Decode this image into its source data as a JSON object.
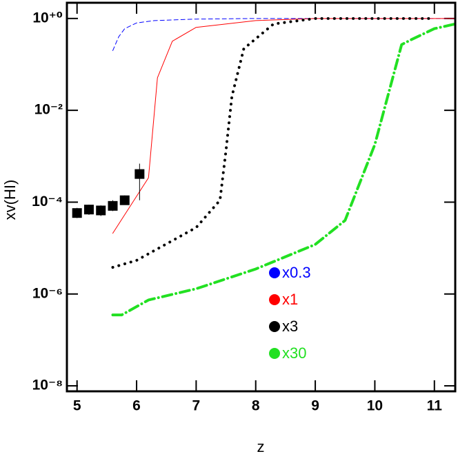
{
  "chart_data": {
    "type": "line",
    "xlabel": "z",
    "ylabel": "xv(HI)",
    "log_y": true,
    "xlim": [
      4.83,
      11.35
    ],
    "xticks": [
      5,
      6,
      7,
      8,
      9,
      10,
      11
    ],
    "ylim": [
      7.6e-09,
      2.2
    ],
    "yticks": [
      {
        "value": 1,
        "label": "10⁺⁰"
      },
      {
        "value": 0.01,
        "label": "10⁻²"
      },
      {
        "value": 0.0001,
        "label": "10⁻⁴"
      },
      {
        "value": 1e-06,
        "label": "10⁻⁶"
      },
      {
        "value": 1e-08,
        "label": "10⁻⁸"
      }
    ],
    "series": [
      {
        "name": "x0.3",
        "color": "#0000ff",
        "style": "dashed",
        "width": 1,
        "x": [
          5.6,
          5.7,
          5.8,
          6.0,
          6.3,
          7.0,
          8.0,
          11.35
        ],
        "values": [
          0.2,
          0.4,
          0.6,
          0.8,
          0.9,
          0.97,
          1,
          1
        ]
      },
      {
        "name": "x1",
        "color": "#ff0000",
        "style": "solid",
        "width": 1,
        "x": [
          5.6,
          6.2,
          6.35,
          6.6,
          7.0,
          8.0,
          9.0,
          11.35
        ],
        "values": [
          2.1e-05,
          0.00034,
          0.051,
          0.32,
          0.64,
          0.9,
          1,
          1
        ]
      },
      {
        "name": "x3",
        "color": "#000000",
        "style": "dotted",
        "width": 4,
        "x": [
          5.6,
          6.0,
          7.0,
          7.4,
          7.5,
          7.6,
          7.8,
          8.3,
          9.0,
          11.0
        ],
        "values": [
          3.8e-06,
          5.4e-06,
          2.8e-05,
          0.00011,
          0.0013,
          0.02,
          0.22,
          0.76,
          1,
          1
        ]
      },
      {
        "name": "x30",
        "color": "#22e022",
        "style": "dashdot",
        "width": 4,
        "x": [
          5.6,
          5.75,
          6.2,
          7.0,
          8.0,
          9.0,
          9.5,
          10.0,
          10.45,
          10.6,
          11.0,
          11.35
        ],
        "values": [
          3.5e-07,
          3.5e-07,
          7.4e-07,
          1.3e-06,
          3.5e-06,
          1.2e-05,
          4e-05,
          0.0018,
          0.27,
          0.34,
          0.6,
          0.76
        ]
      }
    ],
    "observations": {
      "color": "#000000",
      "x": [
        5.0,
        5.2,
        5.4,
        5.6,
        5.8,
        6.05
      ],
      "values": [
        5.8e-05,
        6.9e-05,
        6.6e-05,
        8.3e-05,
        0.00011,
        0.00041
      ],
      "y_low": [
        4.5e-05,
        5.3e-05,
        5e-05,
        6.4e-05,
        8.8e-05,
        0.00011
      ],
      "y_high": [
        7.5e-05,
        8.8e-05,
        8.5e-05,
        0.00011,
        0.00014,
        0.00069
      ]
    }
  }
}
